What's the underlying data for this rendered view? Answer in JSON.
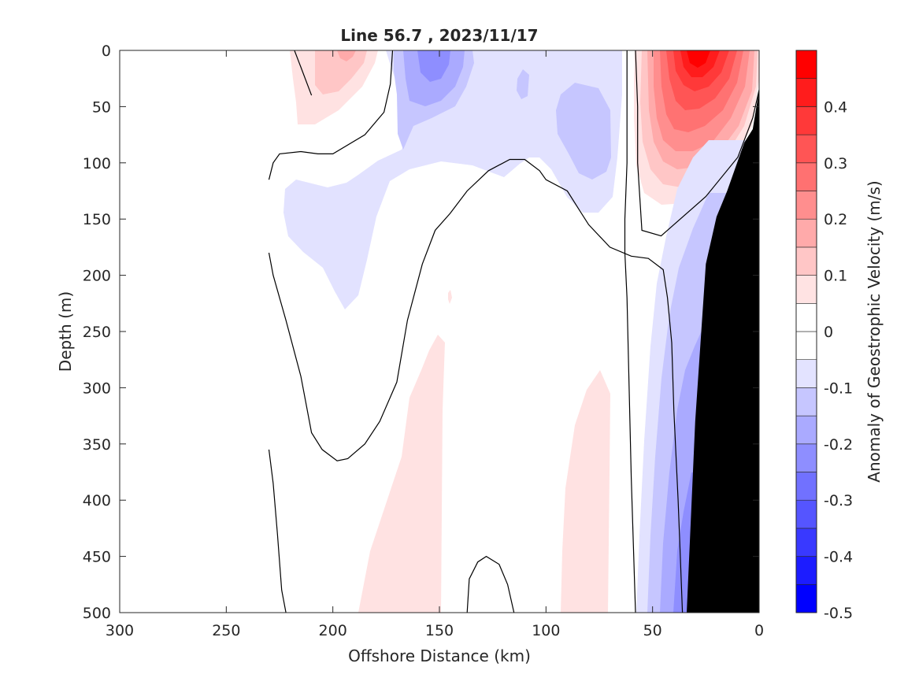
{
  "chart_data": {
    "type": "heatmap",
    "title": "Line 56.7 , 2023/11/17",
    "xlabel": "Offshore Distance (km)",
    "ylabel": "Depth (m)",
    "colorbar_label": "Anomaly of Geostrophic Velocity (m/s)",
    "xlim": [
      300,
      0
    ],
    "ylim": [
      500,
      0
    ],
    "x_ticks": [
      300,
      250,
      200,
      150,
      100,
      50,
      0
    ],
    "y_ticks": [
      0,
      50,
      100,
      150,
      200,
      250,
      300,
      350,
      400,
      450,
      500
    ],
    "x_reversed": true,
    "y_reversed": true,
    "colorbar": {
      "range": [
        -0.5,
        0.5
      ],
      "step": 0.05,
      "tick_values": [
        0.4,
        0.3,
        0.2,
        0.1,
        0,
        -0.1,
        -0.2,
        -0.3,
        -0.4,
        -0.5
      ],
      "tick_labels": [
        "0.4",
        "0.3",
        "0.2",
        "0.1",
        "0",
        "-0.1",
        "-0.2",
        "-0.3",
        "-0.4",
        "-0.5"
      ],
      "negative_color": "#0000ff",
      "positive_color": "#ff0000",
      "neutral_color": "#ffffff"
    },
    "bathymetry_color": "#000000",
    "bathymetry": [
      [
        0,
        35
      ],
      [
        3,
        70
      ],
      [
        7,
        82
      ],
      [
        15,
        125
      ],
      [
        20,
        148
      ],
      [
        25,
        190
      ],
      [
        30,
        330
      ],
      [
        34,
        500
      ],
      [
        0,
        500
      ]
    ],
    "zero_contour_color": "#000000",
    "zero_contours": [
      [
        [
          218,
          0
        ],
        [
          215,
          15
        ],
        [
          212,
          30
        ],
        [
          210,
          40
        ]
      ],
      [
        [
          230,
          115
        ],
        [
          228,
          100
        ],
        [
          225,
          92
        ],
        [
          215,
          90
        ],
        [
          207,
          92
        ],
        [
          200,
          92
        ],
        [
          185,
          75
        ],
        [
          176,
          55
        ],
        [
          173,
          30
        ],
        [
          172,
          0
        ]
      ],
      [
        [
          230,
          180
        ],
        [
          228,
          200
        ],
        [
          222,
          240
        ],
        [
          215,
          290
        ],
        [
          210,
          340
        ],
        [
          205,
          355
        ],
        [
          198,
          365
        ],
        [
          193,
          363
        ],
        [
          185,
          350
        ],
        [
          178,
          330
        ],
        [
          170,
          295
        ],
        [
          165,
          240
        ],
        [
          158,
          190
        ],
        [
          152,
          160
        ],
        [
          145,
          145
        ],
        [
          137,
          125
        ],
        [
          127,
          107
        ],
        [
          117,
          97
        ],
        [
          110,
          97
        ],
        [
          103,
          107
        ],
        [
          100,
          115
        ],
        [
          90,
          125
        ],
        [
          85,
          140
        ],
        [
          80,
          155
        ],
        [
          70,
          175
        ],
        [
          60,
          183
        ],
        [
          52,
          185
        ],
        [
          45,
          195
        ],
        [
          43,
          220
        ],
        [
          41,
          260
        ],
        [
          40,
          320
        ],
        [
          38,
          400
        ],
        [
          37,
          450
        ],
        [
          36,
          500
        ]
      ],
      [
        [
          230,
          355
        ],
        [
          228,
          385
        ],
        [
          226,
          430
        ],
        [
          224,
          480
        ],
        [
          222,
          500
        ]
      ],
      [
        [
          137,
          500
        ],
        [
          136,
          470
        ],
        [
          132,
          455
        ],
        [
          128,
          450
        ],
        [
          122,
          457
        ],
        [
          118,
          475
        ],
        [
          115,
          500
        ]
      ],
      [
        [
          58,
          500
        ],
        [
          59,
          440
        ],
        [
          60,
          380
        ],
        [
          61,
          300
        ],
        [
          62,
          220
        ],
        [
          63,
          180
        ],
        [
          63,
          150
        ],
        [
          62,
          100
        ],
        [
          62,
          50
        ],
        [
          62,
          0
        ]
      ],
      [
        [
          0,
          35
        ],
        [
          3,
          60
        ],
        [
          10,
          95
        ],
        [
          25,
          130
        ],
        [
          40,
          155
        ],
        [
          46,
          165
        ],
        [
          55,
          160
        ],
        [
          57,
          100
        ],
        [
          57,
          50
        ],
        [
          58,
          0
        ]
      ]
    ],
    "anomaly_features": [
      {
        "kind": "warm",
        "center": [
          200,
          30
        ],
        "depth_extent": 50,
        "peak": 0.1
      },
      {
        "kind": "cold",
        "center": [
          153,
          35
        ],
        "depth_extent": 60,
        "peak": -0.2
      },
      {
        "kind": "cold",
        "center": [
          175,
          150
        ],
        "depth_extent": 120,
        "peak": -0.05
      },
      {
        "kind": "cold",
        "center": [
          80,
          100
        ],
        "depth_extent": 80,
        "peak": -0.1
      },
      {
        "kind": "warm",
        "center": [
          32,
          25
        ],
        "depth_extent": 130,
        "peak": 0.45
      },
      {
        "kind": "cold",
        "center": [
          35,
          350
        ],
        "depth_extent": 300,
        "peak": -0.2
      },
      {
        "kind": "warm",
        "center": [
          165,
          380
        ],
        "depth_extent": 250,
        "peak": 0.05
      },
      {
        "kind": "warm",
        "center": [
          82,
          400
        ],
        "depth_extent": 200,
        "peak": 0.05
      }
    ]
  }
}
